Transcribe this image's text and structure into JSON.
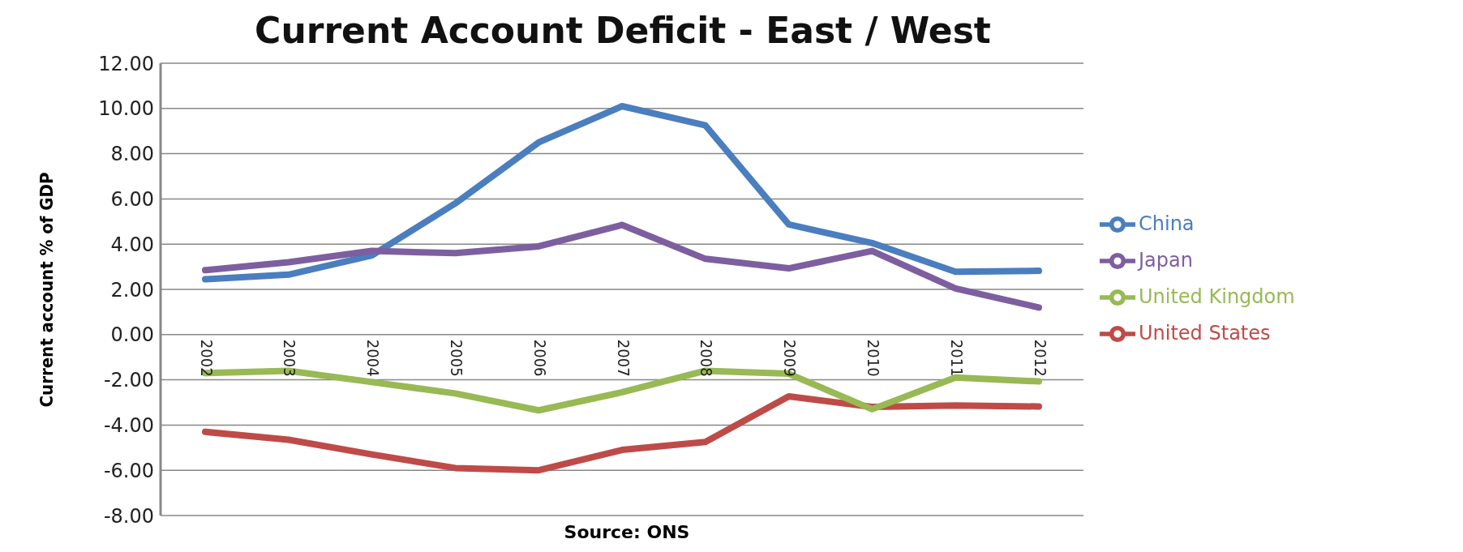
{
  "chart_data": {
    "type": "line",
    "title": "Current Account Deficit - East / West",
    "ylabel": "Current account % of GDP",
    "annotations": [
      "Source: ONS"
    ],
    "categories": [
      "2002",
      "2003",
      "2004",
      "2005",
      "2006",
      "2007",
      "2008",
      "2009",
      "2010",
      "2011",
      "2012"
    ],
    "series": [
      {
        "name": "China",
        "color": "#4a7ebf",
        "values": [
          2.45,
          2.65,
          3.5,
          5.8,
          8.5,
          10.1,
          9.25,
          4.87,
          4.05,
          2.78,
          2.82
        ]
      },
      {
        "name": "United States",
        "color": "#be4b48",
        "values": [
          -4.3,
          -4.65,
          -5.3,
          -5.9,
          -6.0,
          -5.1,
          -4.75,
          -2.73,
          -3.2,
          -3.13,
          -3.18
        ]
      },
      {
        "name": "United Kingdom",
        "color": "#98b954",
        "values": [
          -1.7,
          -1.6,
          -2.1,
          -2.6,
          -3.35,
          -2.55,
          -1.6,
          -1.73,
          -3.3,
          -1.9,
          -2.07
        ]
      },
      {
        "name": "Japan",
        "color": "#7d5fa0",
        "values": [
          2.85,
          3.2,
          3.7,
          3.6,
          3.9,
          4.85,
          3.35,
          2.93,
          3.7,
          2.04,
          1.2
        ]
      }
    ],
    "ylim": [
      -8,
      12
    ],
    "yticks": [
      {
        "value": -8,
        "label": "-8.00"
      },
      {
        "value": -6,
        "label": "-6.00"
      },
      {
        "value": -4,
        "label": "-4.00"
      },
      {
        "value": -2,
        "label": "-2.00"
      },
      {
        "value": 0,
        "label": "0.00"
      },
      {
        "value": 2,
        "label": "2.00"
      },
      {
        "value": 4,
        "label": "4.00"
      },
      {
        "value": 6,
        "label": "6.00"
      },
      {
        "value": 8,
        "label": "8.00"
      },
      {
        "value": 10,
        "label": "10.00"
      },
      {
        "value": 12,
        "label": "12.00"
      }
    ],
    "grid": "y",
    "legend": "right",
    "marker": "none",
    "line_style": "solid"
  }
}
